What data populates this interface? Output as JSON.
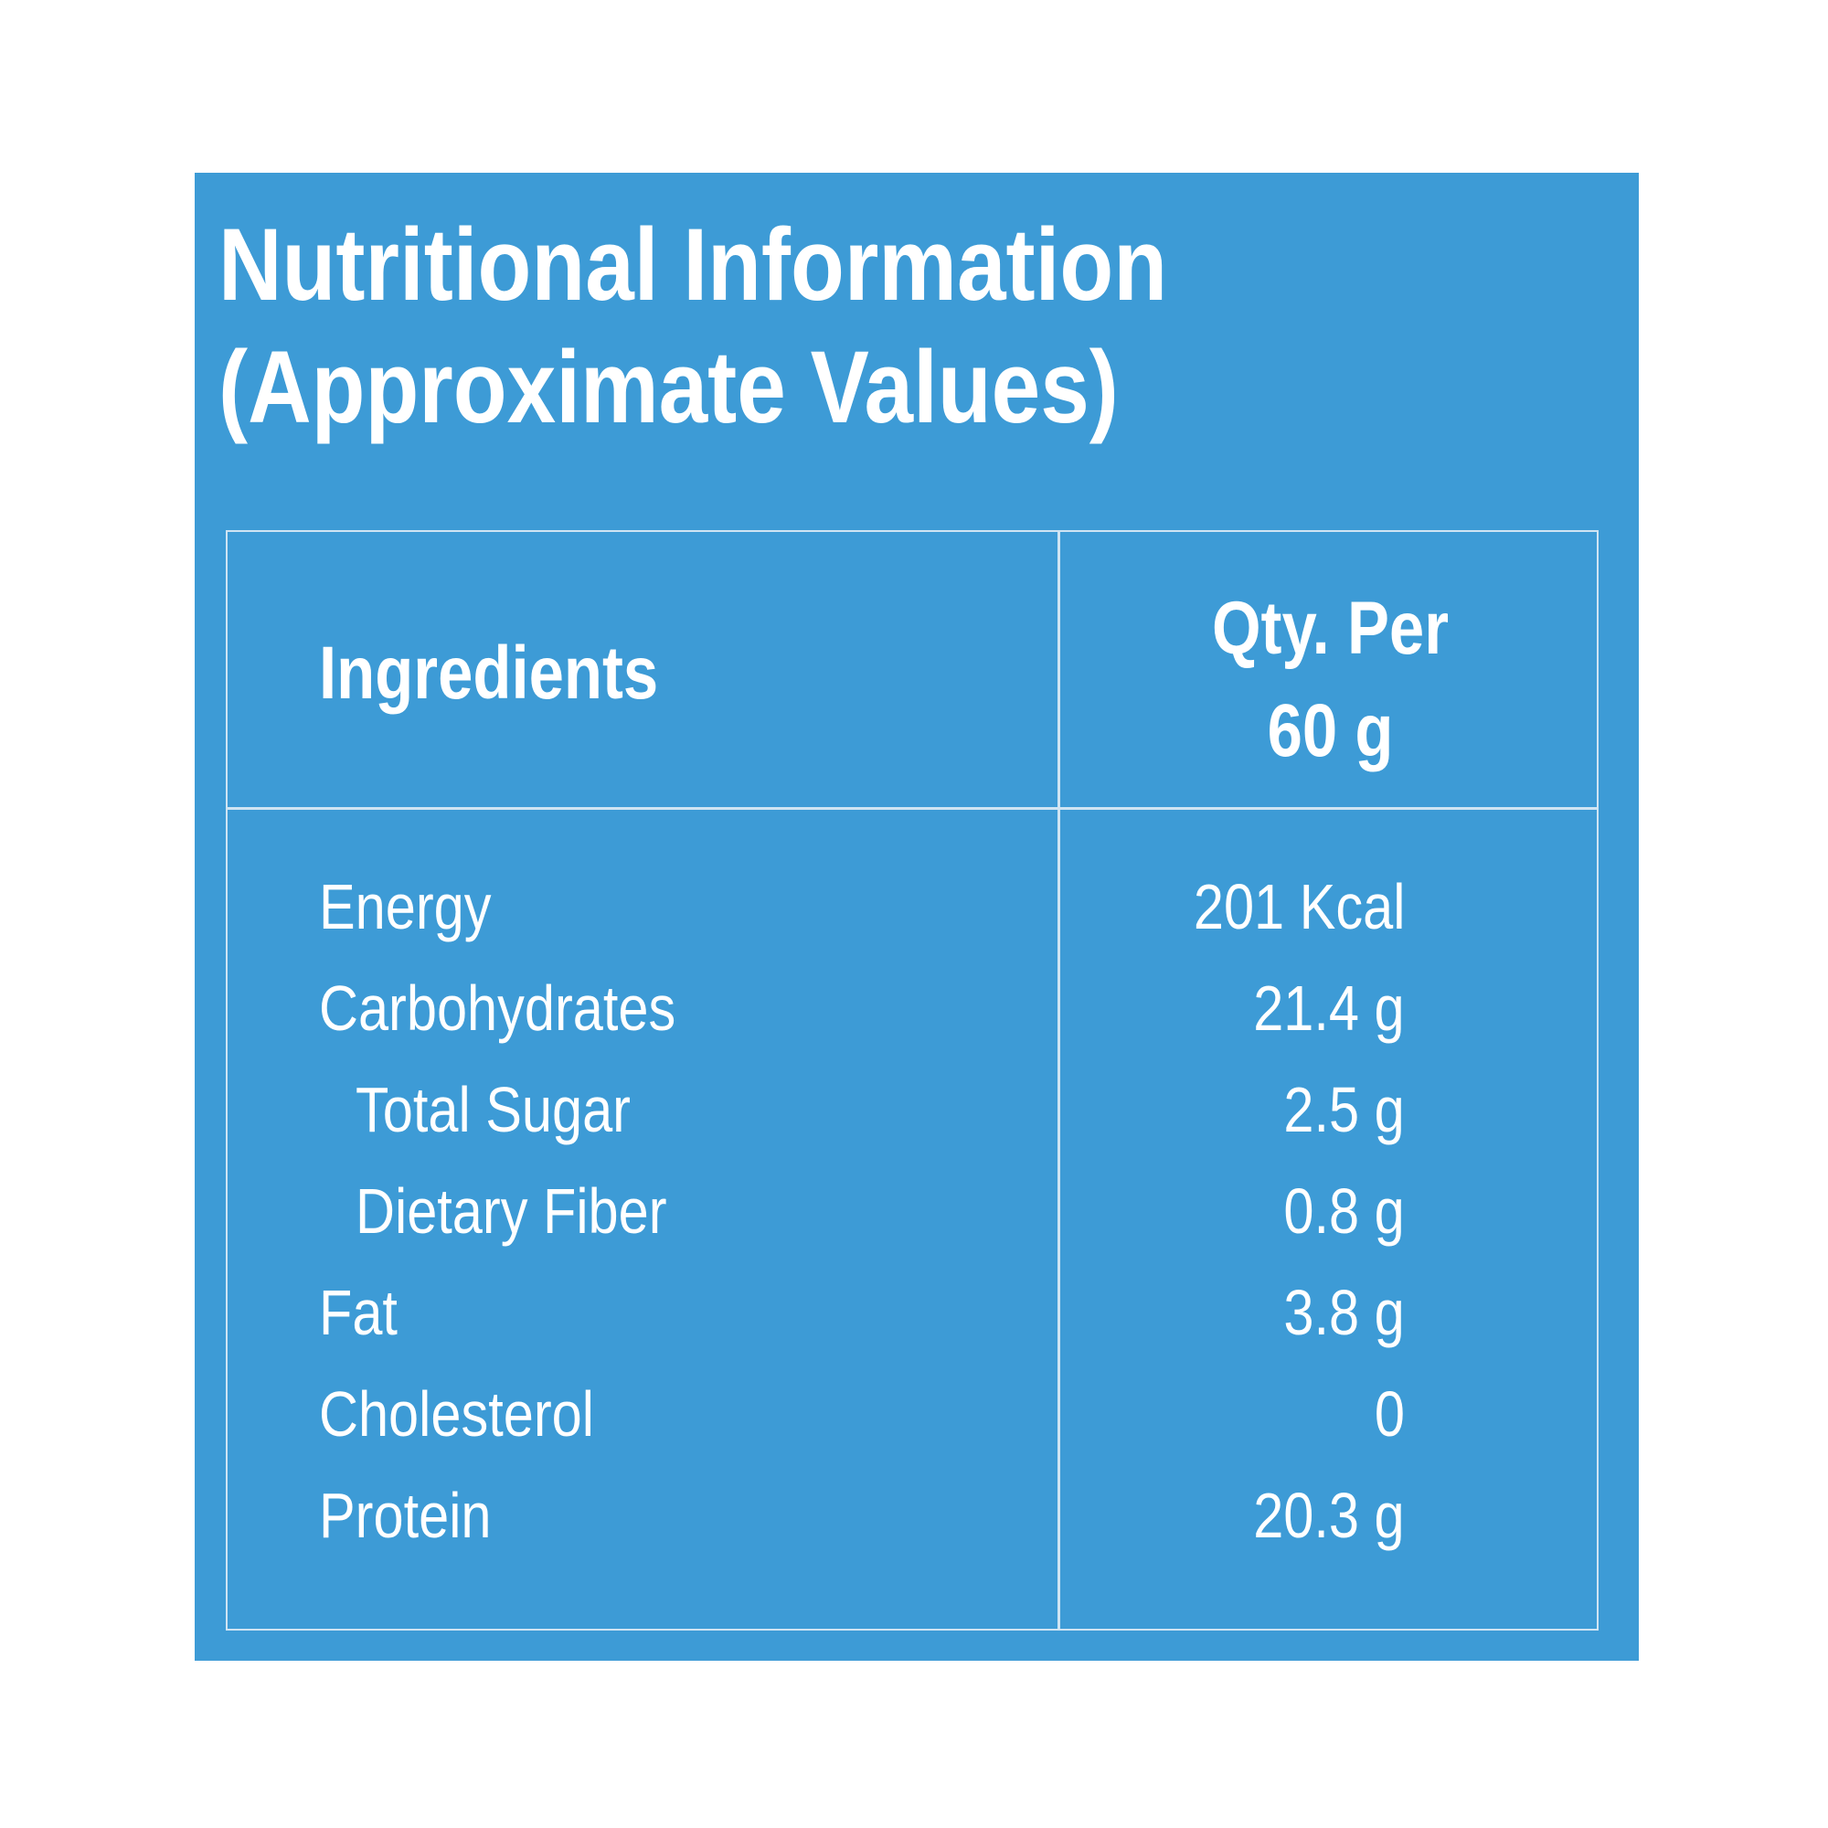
{
  "title": {
    "line1": "Nutritional Information",
    "line2": "(Approximate Values)"
  },
  "table": {
    "header_ingredients": "Ingredients",
    "header_qty_line1": "Qty. Per",
    "header_qty_line2": "60 g",
    "rows": [
      {
        "name": "Energy",
        "value": "201 Kcal"
      },
      {
        "name": "Carbohydrates",
        "value": "21.4 g"
      },
      {
        "name": "Total Sugar",
        "value": "2.5 g"
      },
      {
        "name": "Dietary Fiber",
        "value": "0.8 g"
      },
      {
        "name": "Fat",
        "value": "3.8 g"
      },
      {
        "name": "Cholesterol",
        "value": "0"
      },
      {
        "name": "Protein",
        "value": "20.3 g"
      }
    ]
  },
  "colors": {
    "panel_background": "#3d9bd6",
    "text": "#ffffff",
    "rule": "#cfe4f3"
  }
}
